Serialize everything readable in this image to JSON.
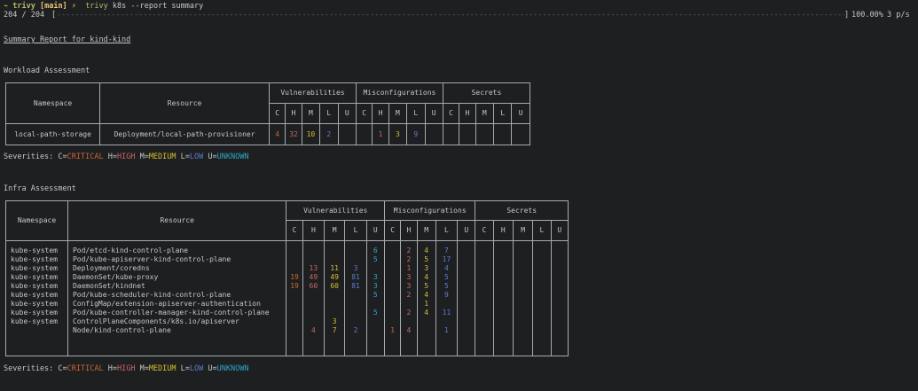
{
  "terminal": {
    "prompt": {
      "cwd_glyph": "⌁",
      "cwd": "trivy",
      "branch": "[main]",
      "bolt": "⚡",
      "cmd_dir": "trivy",
      "command": "k8s --report summary"
    },
    "progress": {
      "count": "204 / 204",
      "bar_left": "[",
      "bar_fill": "--------------------------------------------------------------------------------------------------------------------------------------------------------------------------------------------------",
      "bar_right": "]",
      "percent": "100.00%",
      "rate": "3 p/s",
      "fraction": 1.0
    },
    "report_title": "Summary Report for kind-kind",
    "severity_colors": {
      "C": "#cc6633",
      "H": "#cc6666",
      "M": "#d7bf2e",
      "L": "#5a7ed0",
      "U": "#2fa8c4"
    },
    "legend": [
      {
        "key": "Severities: C=",
        "label": "CRITICAL",
        "sev": "c"
      },
      {
        "key": " H=",
        "label": "HIGH",
        "sev": "h"
      },
      {
        "key": " M=",
        "label": "MEDIUM",
        "sev": "m"
      },
      {
        "key": " L=",
        "label": "LOW",
        "sev": "l"
      },
      {
        "key": " U=",
        "label": "UNKNOWN",
        "sev": "t"
      }
    ]
  },
  "workload": {
    "title": "Workload Assessment",
    "headers": {
      "namespace": "Namespace",
      "resource": "Resource",
      "groups": [
        "Vulnerabilities",
        "Misconfigurations",
        "Secrets"
      ],
      "sev": [
        "C",
        "H",
        "M",
        "L",
        "U"
      ]
    },
    "rows": [
      {
        "namespace": "local-path-storage",
        "resource": "Deployment/local-path-provisioner",
        "vuln": [
          "4",
          "32",
          "10",
          "2",
          ""
        ],
        "misc": [
          "",
          "1",
          "3",
          "9",
          ""
        ],
        "sec": [
          "",
          "",
          "",
          "",
          ""
        ]
      }
    ]
  },
  "infra": {
    "title": "Infra Assessment",
    "headers": {
      "namespace": "Namespace",
      "resource": "Resource",
      "groups": [
        "Vulnerabilities",
        "Misconfigurations",
        "Secrets"
      ],
      "sev": [
        "C",
        "H",
        "M",
        "L",
        "U"
      ]
    },
    "rows": [
      {
        "namespace": "kube-system",
        "resource": "Pod/etcd-kind-control-plane",
        "vuln": [
          "",
          "",
          "",
          "",
          "6"
        ],
        "misc": [
          "",
          "2",
          "4",
          "7",
          ""
        ]
      },
      {
        "namespace": "kube-system",
        "resource": "Pod/kube-apiserver-kind-control-plane",
        "vuln": [
          "",
          "",
          "",
          "",
          "5"
        ],
        "misc": [
          "",
          "2",
          "5",
          "17",
          ""
        ]
      },
      {
        "namespace": "kube-system",
        "resource": "Deployment/coredns",
        "vuln": [
          "",
          "13",
          "11",
          "3",
          ""
        ],
        "misc": [
          "",
          "1",
          "3",
          "4",
          ""
        ]
      },
      {
        "namespace": "kube-system",
        "resource": "DaemonSet/kube-proxy",
        "vuln": [
          "19",
          "49",
          "49",
          "81",
          "3"
        ],
        "misc": [
          "",
          "3",
          "4",
          "5",
          ""
        ]
      },
      {
        "namespace": "kube-system",
        "resource": "DaemonSet/kindnet",
        "vuln": [
          "19",
          "60",
          "60",
          "81",
          "3"
        ],
        "misc": [
          "",
          "3",
          "5",
          "5",
          ""
        ]
      },
      {
        "namespace": "kube-system",
        "resource": "Pod/kube-scheduler-kind-control-plane",
        "vuln": [
          "",
          "",
          "",
          "",
          "5"
        ],
        "misc": [
          "",
          "2",
          "4",
          "9",
          ""
        ]
      },
      {
        "namespace": "kube-system",
        "resource": "ConfigMap/extension-apiserver-authentication",
        "vuln": [
          "",
          "",
          "",
          "",
          ""
        ],
        "misc": [
          "",
          "",
          "1",
          "",
          ""
        ]
      },
      {
        "namespace": "kube-system",
        "resource": "Pod/kube-controller-manager-kind-control-plane",
        "vuln": [
          "",
          "",
          "",
          "",
          "5"
        ],
        "misc": [
          "",
          "2",
          "4",
          "11",
          ""
        ]
      },
      {
        "namespace": "kube-system",
        "resource": "ControlPlaneComponents/k8s.io/apiserver",
        "vuln": [
          "",
          "",
          "3",
          "",
          ""
        ],
        "misc": [
          "",
          "",
          "",
          "",
          ""
        ]
      },
      {
        "namespace": "",
        "resource": "Node/kind-control-plane",
        "vuln": [
          "",
          "4",
          "7",
          "2",
          ""
        ],
        "misc": [
          "1",
          "4",
          "",
          "1",
          ""
        ]
      }
    ]
  }
}
